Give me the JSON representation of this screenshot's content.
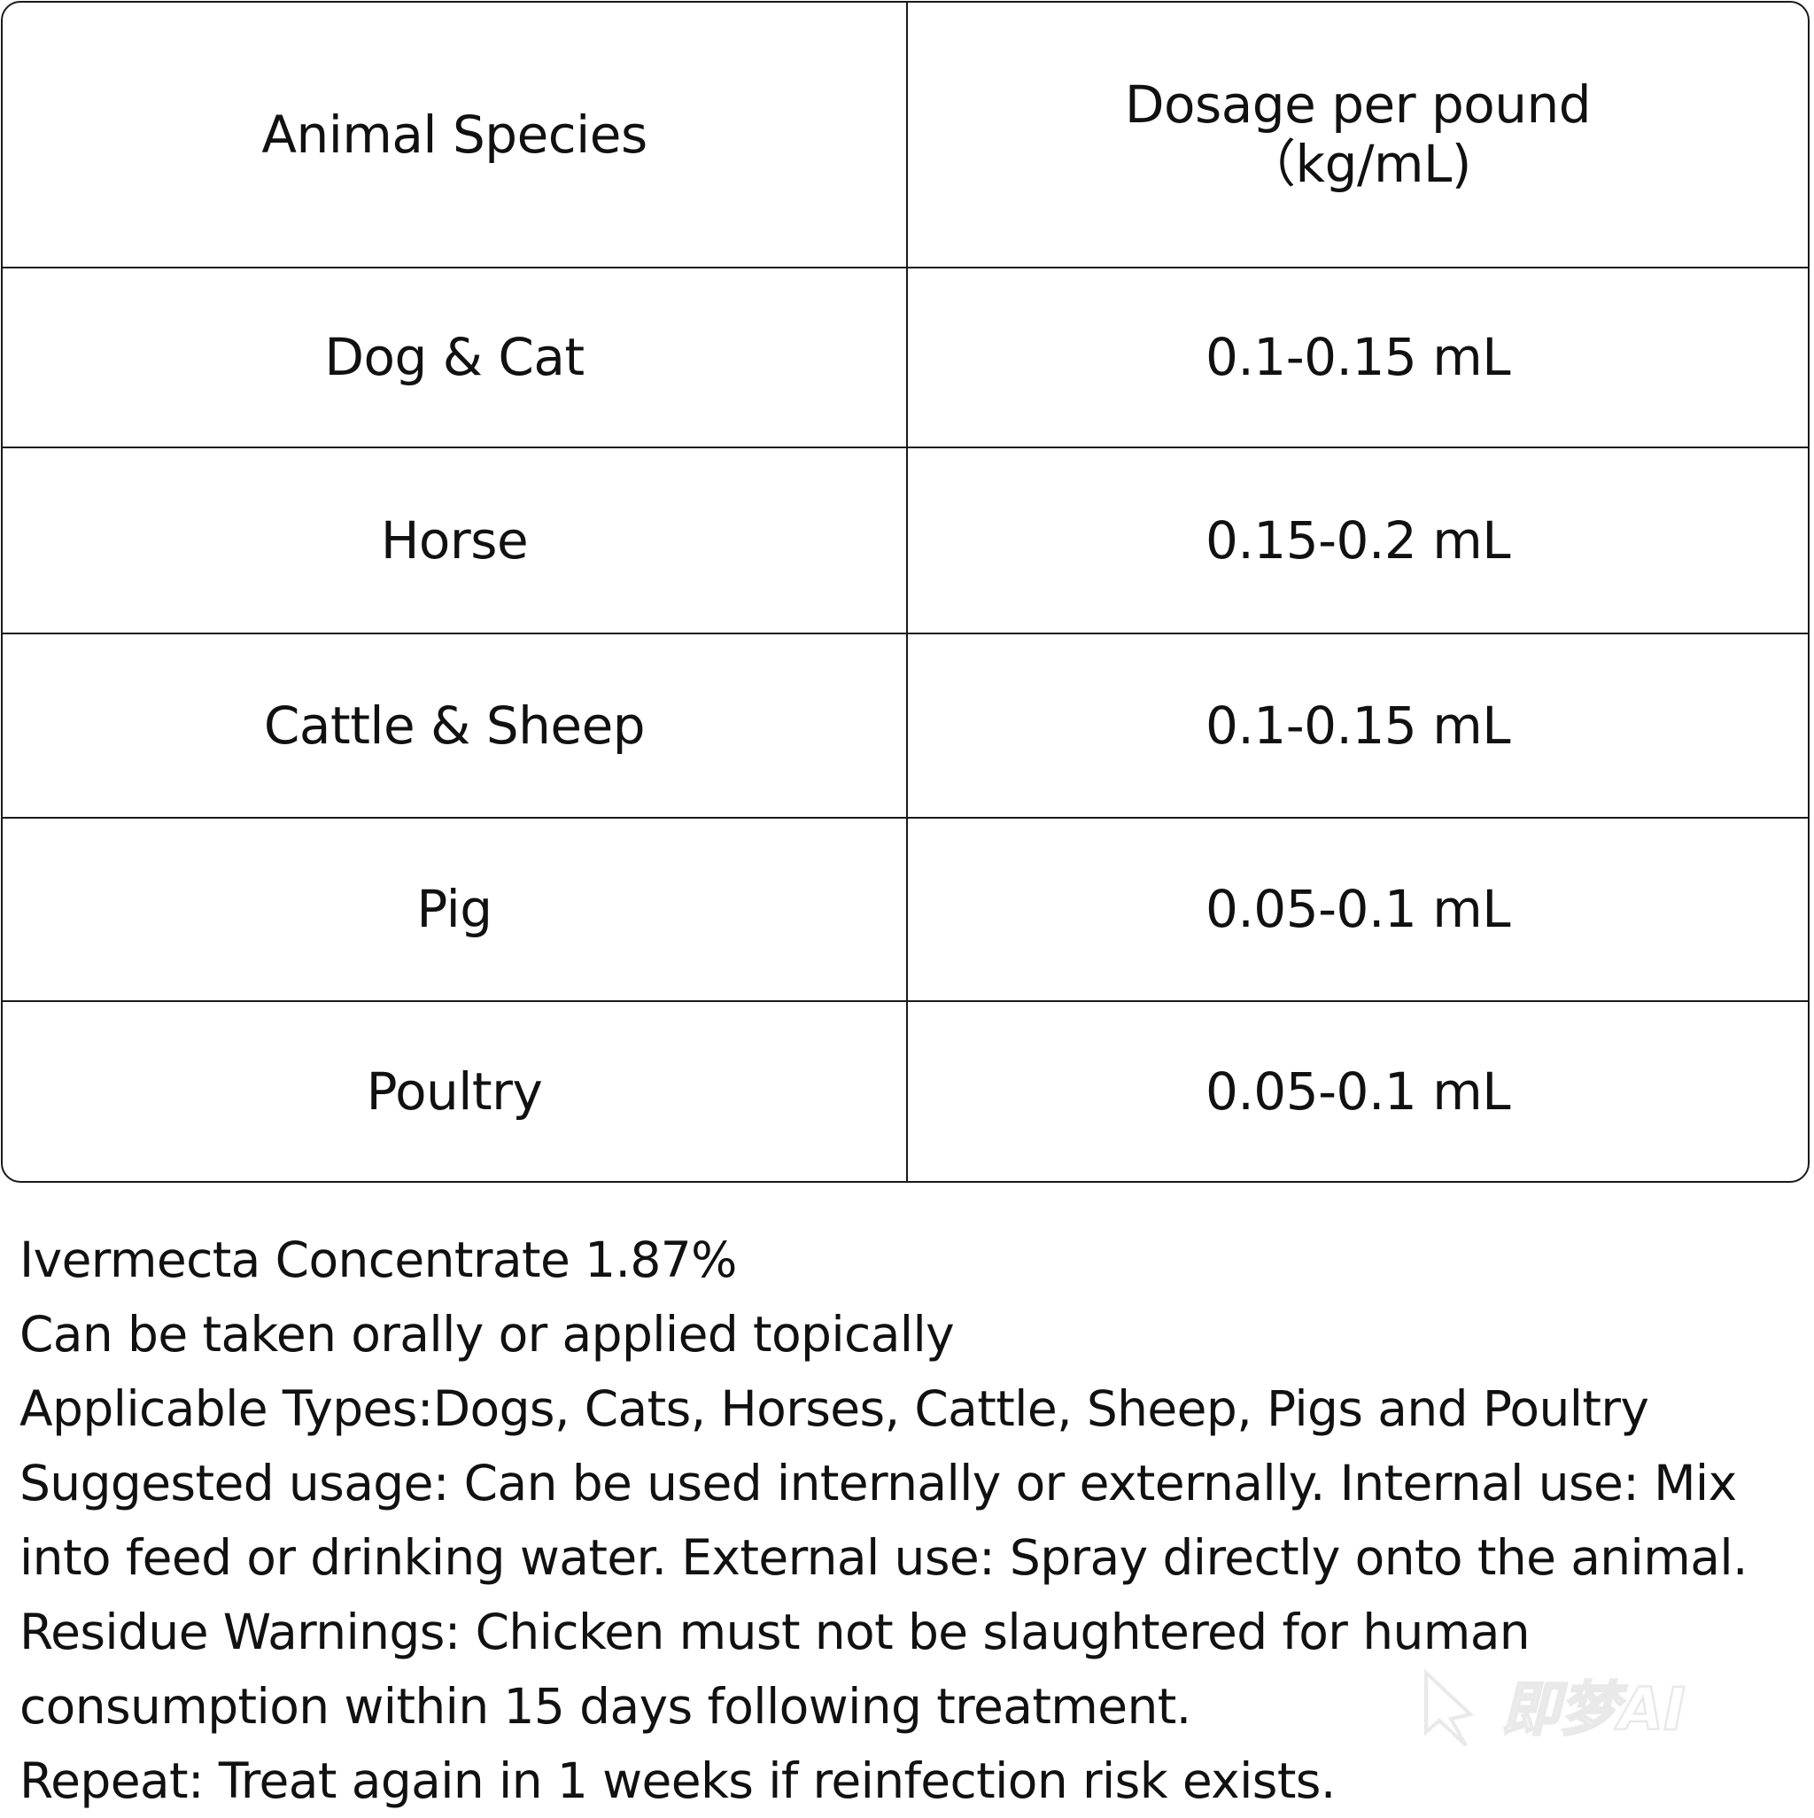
{
  "table": {
    "header": {
      "species": "Animal Species",
      "dosage_line1": "Dosage per pound",
      "dosage_line2": "（kg/mL)"
    },
    "rows": [
      {
        "species": "Dog & Cat",
        "dosage": "0.1-0.15 mL"
      },
      {
        "species": "Horse",
        "dosage": "0.15-0.2 mL"
      },
      {
        "species": "Cattle & Sheep",
        "dosage": "0.1-0.15 mL"
      },
      {
        "species": "Pig",
        "dosage": "0.05-0.1 mL"
      },
      {
        "species": "Poultry",
        "dosage": "0.05-0.1 mL"
      }
    ]
  },
  "notes": {
    "product": "Ivermecta Concentrate 1.87%",
    "administration": "Can be taken orally or applied topically",
    "applicable_types": "Applicable Types:Dogs, Cats, Horses, Cattle, Sheep, Pigs and Poultry",
    "suggested_usage": "Suggested usage: Can be used internally or externally. Internal use: Mix into feed  or drinking water. External use: Spray directly onto the animal.",
    "residue_warnings": "Residue Warnings: Chicken must not be slaughtered for human consumption within 15 days following treatment.",
    "repeat": "Repeat: Treat again in 1 weeks if reinfection risk exists."
  },
  "watermark": {
    "text": "即梦AI"
  },
  "colors": {
    "border": "#1a1a1a",
    "text": "#111111",
    "background": "#ffffff"
  }
}
